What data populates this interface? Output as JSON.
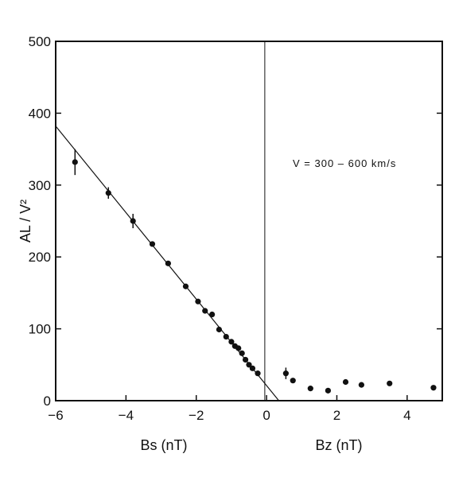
{
  "chart_data": {
    "type": "scatter",
    "ylabel": "AL / V²",
    "xlabel_left": "Bs (nT)",
    "xlabel_right": "Bz (nT)",
    "annotation": "V = 300 – 600 km/s",
    "xlim": [
      -6,
      5
    ],
    "ylim": [
      0,
      500
    ],
    "x_ticks": [
      -6,
      -4,
      -2,
      0,
      2,
      4
    ],
    "x_tick_labels": [
      "−6",
      "−4",
      "−2",
      "0",
      "2",
      "4"
    ],
    "y_ticks": [
      0,
      100,
      200,
      300,
      400,
      500
    ],
    "y_tick_labels": [
      "0",
      "100",
      "200",
      "300",
      "400",
      "500"
    ],
    "grid": false,
    "vertical_reference_line_x": -0.05,
    "series": [
      {
        "points": [
          {
            "x": -5.45,
            "y": 332,
            "err": 18
          },
          {
            "x": -4.5,
            "y": 289,
            "err": 8
          },
          {
            "x": -3.8,
            "y": 250,
            "err": 10
          },
          {
            "x": -3.25,
            "y": 218
          },
          {
            "x": -2.8,
            "y": 191
          },
          {
            "x": -2.3,
            "y": 159
          },
          {
            "x": -1.95,
            "y": 138
          },
          {
            "x": -1.75,
            "y": 125
          },
          {
            "x": -1.55,
            "y": 120
          },
          {
            "x": -1.35,
            "y": 99
          },
          {
            "x": -1.15,
            "y": 89
          },
          {
            "x": -1.0,
            "y": 82
          },
          {
            "x": -0.9,
            "y": 76
          },
          {
            "x": -0.8,
            "y": 73
          },
          {
            "x": -0.7,
            "y": 66
          },
          {
            "x": -0.6,
            "y": 57
          },
          {
            "x": -0.5,
            "y": 50
          },
          {
            "x": -0.4,
            "y": 45
          },
          {
            "x": -0.25,
            "y": 38
          },
          {
            "x": 0.55,
            "y": 38,
            "err": 8
          },
          {
            "x": 0.75,
            "y": 28
          },
          {
            "x": 1.25,
            "y": 17
          },
          {
            "x": 1.75,
            "y": 14
          },
          {
            "x": 2.25,
            "y": 26
          },
          {
            "x": 2.7,
            "y": 22
          },
          {
            "x": 3.5,
            "y": 24
          },
          {
            "x": 4.75,
            "y": 18
          }
        ]
      }
    ],
    "fit_line": {
      "x": [
        -6.0,
        0.35
      ],
      "y": [
        382,
        0
      ]
    }
  }
}
